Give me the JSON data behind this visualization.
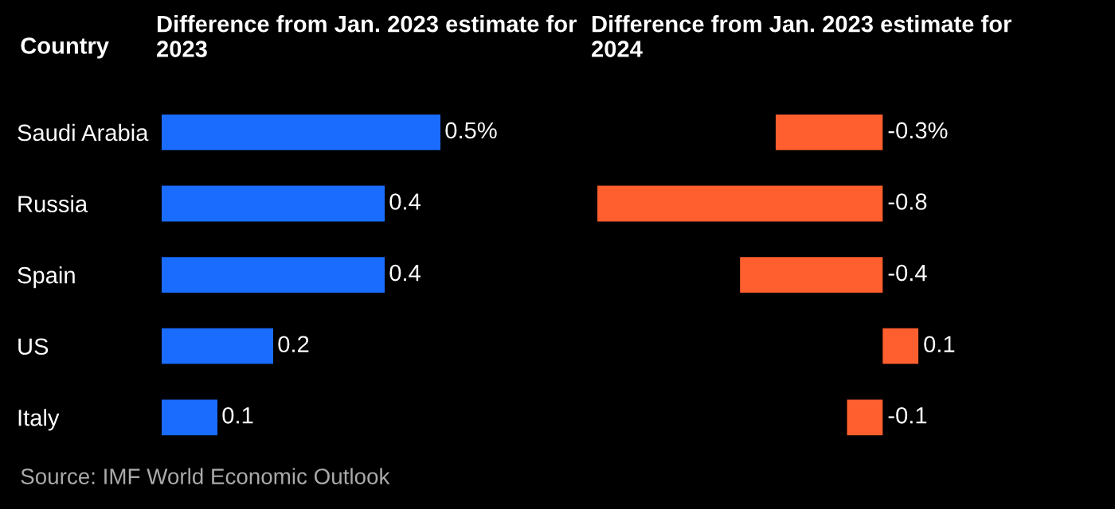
{
  "chart_data": [
    {
      "type": "bar",
      "orientation": "horizontal",
      "title": "Difference from Jan. 2023 estimate for 2023",
      "ylabel": "Country",
      "categories": [
        "Saudi Arabia",
        "Russia",
        "Spain",
        "US",
        "Italy"
      ],
      "values": [
        0.5,
        0.4,
        0.4,
        0.2,
        0.1
      ],
      "color": "#1a6cff",
      "value_labels": [
        "0.5%",
        "0.4",
        "0.4",
        "0.2",
        "0.1"
      ],
      "annotations": [
        "Source: IMF World Economic Outlook"
      ]
    },
    {
      "type": "bar",
      "orientation": "horizontal",
      "title": "Difference from Jan. 2023 estimate for 2024",
      "categories": [
        null,
        null,
        null,
        null,
        null
      ],
      "values": [
        -0.3,
        -0.8,
        -0.4,
        0.1,
        -0.1
      ],
      "color": "#ff5f2e",
      "value_labels": [
        "-0.3%",
        "-0.8",
        "-0.4",
        "0.1",
        "-0.1"
      ]
    }
  ]
}
